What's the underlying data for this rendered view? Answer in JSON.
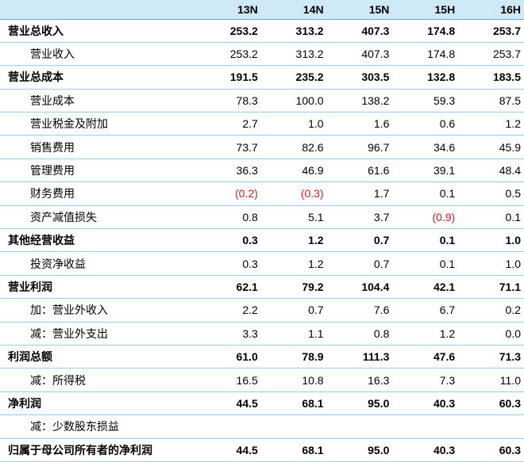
{
  "columns": [
    "13N",
    "14N",
    "15N",
    "15H",
    "16H"
  ],
  "negative_color": "#e8171f",
  "header_color": "#d0e9f7",
  "rows": [
    {
      "label": "营业总收入",
      "bold": true,
      "values": [
        "253.2",
        "313.2",
        "407.3",
        "174.8",
        "253.7"
      ]
    },
    {
      "label": "营业收入",
      "bold": false,
      "values": [
        "253.2",
        "313.2",
        "407.3",
        "174.8",
        "253.7"
      ]
    },
    {
      "label": "营业总成本",
      "bold": true,
      "values": [
        "191.5",
        "235.2",
        "303.5",
        "132.8",
        "183.5"
      ]
    },
    {
      "label": "营业成本",
      "bold": false,
      "values": [
        "78.3",
        "100.0",
        "138.2",
        "59.3",
        "87.5"
      ]
    },
    {
      "label": "营业税金及附加",
      "bold": false,
      "values": [
        "2.7",
        "1.0",
        "1.6",
        "0.6",
        "1.2"
      ]
    },
    {
      "label": "销售费用",
      "bold": false,
      "values": [
        "73.7",
        "82.6",
        "96.7",
        "34.6",
        "45.9"
      ]
    },
    {
      "label": "管理费用",
      "bold": false,
      "values": [
        "36.3",
        "46.9",
        "61.6",
        "39.1",
        "48.4"
      ]
    },
    {
      "label": "财务费用",
      "bold": false,
      "values": [
        "(0.2)",
        "(0.3)",
        "1.7",
        "0.1",
        "0.5"
      ]
    },
    {
      "label": "资产减值损失",
      "bold": false,
      "values": [
        "0.8",
        "5.1",
        "3.7",
        "(0.9)",
        "0.1"
      ]
    },
    {
      "label": "其他经营收益",
      "bold": true,
      "values": [
        "0.3",
        "1.2",
        "0.7",
        "0.1",
        "1.0"
      ]
    },
    {
      "label": "投资净收益",
      "bold": false,
      "values": [
        "0.3",
        "1.2",
        "0.7",
        "0.1",
        "1.0"
      ]
    },
    {
      "label": "营业利润",
      "bold": true,
      "values": [
        "62.1",
        "79.2",
        "104.4",
        "42.1",
        "71.1"
      ]
    },
    {
      "label": "加：营业外收入",
      "bold": false,
      "values": [
        "2.2",
        "0.7",
        "7.6",
        "6.7",
        "0.2"
      ]
    },
    {
      "label": "减：营业外支出",
      "bold": false,
      "values": [
        "3.3",
        "1.1",
        "0.8",
        "1.2",
        "0.0"
      ]
    },
    {
      "label": "利润总额",
      "bold": true,
      "values": [
        "61.0",
        "78.9",
        "111.3",
        "47.6",
        "71.3"
      ]
    },
    {
      "label": "减：所得税",
      "bold": false,
      "values": [
        "16.5",
        "10.8",
        "16.3",
        "7.3",
        "11.0"
      ]
    },
    {
      "label": "净利润",
      "bold": true,
      "values": [
        "44.5",
        "68.1",
        "95.0",
        "40.3",
        "60.3"
      ]
    },
    {
      "label": "减：少数股东损益",
      "bold": false,
      "values": [
        "",
        "",
        "",
        "",
        ""
      ]
    },
    {
      "label": "归属于母公司所有者的净利润",
      "bold": true,
      "values": [
        "44.5",
        "68.1",
        "95.0",
        "40.3",
        "60.3"
      ]
    }
  ]
}
